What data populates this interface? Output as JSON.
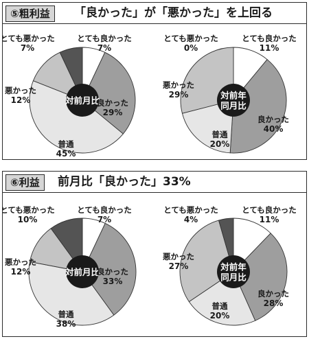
{
  "panels": [
    {
      "tag": "⑤粗利益",
      "title": "「良かった」が「悪かった」を上回る",
      "chart_data": [
        {
          "type": "pie",
          "center_label": [
            "対前月比"
          ],
          "slices": [
            {
              "label": "とても良かった",
              "value": 7,
              "display": "7%",
              "color": "#ffffff"
            },
            {
              "label": "良かった",
              "value": 29,
              "display": "29%",
              "color": "#9e9e9e"
            },
            {
              "label": "普通",
              "value": 45,
              "display": "45%",
              "color": "#e6e6e6"
            },
            {
              "label": "悪かった",
              "value": 12,
              "display": "12%",
              "color": "#c4c4c4"
            },
            {
              "label": "とても悪かった",
              "value": 7,
              "display": "7%",
              "color": "#545454"
            }
          ]
        },
        {
          "type": "pie",
          "center_label": [
            "対前年",
            "同月比"
          ],
          "slices": [
            {
              "label": "とても良かった",
              "value": 11,
              "display": "11%",
              "color": "#ffffff"
            },
            {
              "label": "良かった",
              "value": 40,
              "display": "40%",
              "color": "#9e9e9e"
            },
            {
              "label": "普通",
              "value": 20,
              "display": "20%",
              "color": "#e6e6e6"
            },
            {
              "label": "悪かった",
              "value": 29,
              "display": "29%",
              "color": "#c4c4c4"
            },
            {
              "label": "とても悪かった",
              "value": 0,
              "display": "0%",
              "color": "#545454"
            }
          ]
        }
      ]
    },
    {
      "tag": "⑥利益",
      "title": "前月比「良かった」33%",
      "chart_data": [
        {
          "type": "pie",
          "center_label": [
            "対前月比"
          ],
          "slices": [
            {
              "label": "とても良かった",
              "value": 7,
              "display": "7%",
              "color": "#ffffff"
            },
            {
              "label": "良かった",
              "value": 33,
              "display": "33%",
              "color": "#9e9e9e"
            },
            {
              "label": "普通",
              "value": 38,
              "display": "38%",
              "color": "#e6e6e6"
            },
            {
              "label": "悪かった",
              "value": 12,
              "display": "12%",
              "color": "#c4c4c4"
            },
            {
              "label": "とても悪かった",
              "value": 10,
              "display": "10%",
              "color": "#545454"
            }
          ]
        },
        {
          "type": "pie",
          "center_label": [
            "対前年",
            "同月比"
          ],
          "slices": [
            {
              "label": "とても良かった",
              "value": 11,
              "display": "11%",
              "color": "#ffffff"
            },
            {
              "label": "良かった",
              "value": 28,
              "display": "28%",
              "color": "#9e9e9e"
            },
            {
              "label": "普通",
              "value": 20,
              "display": "20%",
              "color": "#e6e6e6"
            },
            {
              "label": "悪かった",
              "value": 27,
              "display": "27%",
              "color": "#c4c4c4"
            },
            {
              "label": "とても悪かった",
              "value": 4,
              "display": "4%",
              "color": "#545454"
            }
          ]
        }
      ]
    }
  ]
}
